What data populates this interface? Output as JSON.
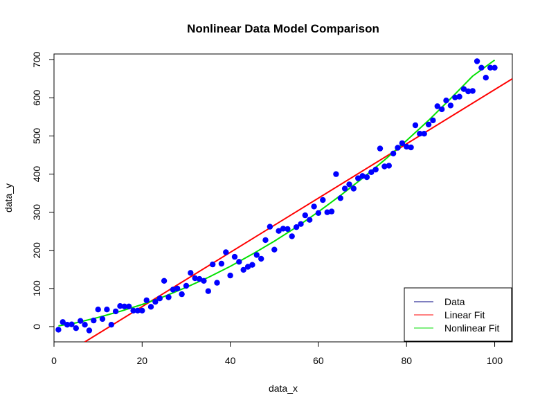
{
  "chart_data": {
    "type": "scatter",
    "title": "Nonlinear Data Model Comparison",
    "xlabel": "data_x",
    "ylabel": "data_y",
    "xlim": [
      0,
      104
    ],
    "ylim": [
      -40,
      715
    ],
    "x_ticks": [
      0,
      20,
      40,
      60,
      80,
      100
    ],
    "y_ticks": [
      0,
      100,
      200,
      300,
      400,
      500,
      600,
      700
    ],
    "grid": false,
    "legend_position": "bottom-right",
    "legend": [
      {
        "label": "Data",
        "color": "#000080"
      },
      {
        "label": "Linear Fit",
        "color": "#ff0000"
      },
      {
        "label": "Nonlinear Fit",
        "color": "#00dd00"
      }
    ],
    "colors": {
      "points": "#0000ff",
      "linear": "#ff0000",
      "nonlinear": "#00e000"
    },
    "series": [
      {
        "name": "Data",
        "kind": "points",
        "x": [
          1,
          2,
          3,
          4,
          5,
          6,
          7,
          8,
          9,
          10,
          11,
          12,
          13,
          14,
          15,
          16,
          17,
          18,
          19,
          20,
          21,
          22,
          23,
          24,
          25,
          26,
          27,
          28,
          29,
          30,
          31,
          32,
          33,
          34,
          35,
          36,
          37,
          38,
          39,
          40,
          41,
          42,
          43,
          44,
          45,
          46,
          47,
          48,
          49,
          50,
          51,
          52,
          53,
          54,
          55,
          56,
          57,
          58,
          59,
          60,
          61,
          62,
          63,
          64,
          65,
          66,
          67,
          68,
          69,
          70,
          71,
          72,
          73,
          74,
          75,
          76,
          77,
          78,
          79,
          80,
          81,
          82,
          83,
          84,
          85,
          86,
          87,
          88,
          89,
          90,
          91,
          92,
          93,
          94,
          95,
          96,
          97,
          98,
          99,
          100
        ],
        "y": [
          -8,
          12,
          5,
          6,
          -4,
          15,
          5,
          -10,
          16,
          45,
          20,
          45,
          5,
          40,
          54,
          53,
          53,
          42,
          42,
          42,
          69,
          52,
          65,
          74,
          120,
          77,
          97,
          100,
          85,
          107,
          141,
          127,
          125,
          120,
          93,
          163,
          115,
          165,
          195,
          134,
          183,
          170,
          149,
          157,
          162,
          188,
          178,
          227,
          262,
          202,
          251,
          257,
          256,
          237,
          261,
          269,
          292,
          280,
          315,
          298,
          332,
          300,
          302,
          400,
          337,
          362,
          373,
          362,
          389,
          395,
          392,
          405,
          412,
          467,
          420,
          422,
          454,
          469,
          481,
          472,
          470,
          528,
          506,
          506,
          530,
          541,
          578,
          570,
          593,
          580,
          601,
          603,
          623,
          617,
          618,
          696,
          679,
          653,
          679,
          679
        ]
      },
      {
        "name": "Linear Fit",
        "kind": "line",
        "x": [
          7,
          104
        ],
        "y": [
          -40,
          650
        ]
      },
      {
        "name": "Nonlinear Fit",
        "kind": "line",
        "x": [
          1,
          5,
          10,
          15,
          20,
          25,
          30,
          35,
          40,
          45,
          50,
          55,
          60,
          65,
          70,
          75,
          80,
          85,
          90,
          95,
          100
        ],
        "y": [
          2,
          10,
          24,
          40,
          58,
          79,
          103,
          129,
          158,
          190,
          224,
          261,
          301,
          344,
          389,
          437,
          488,
          541,
          598,
          657,
          699
        ]
      }
    ]
  }
}
